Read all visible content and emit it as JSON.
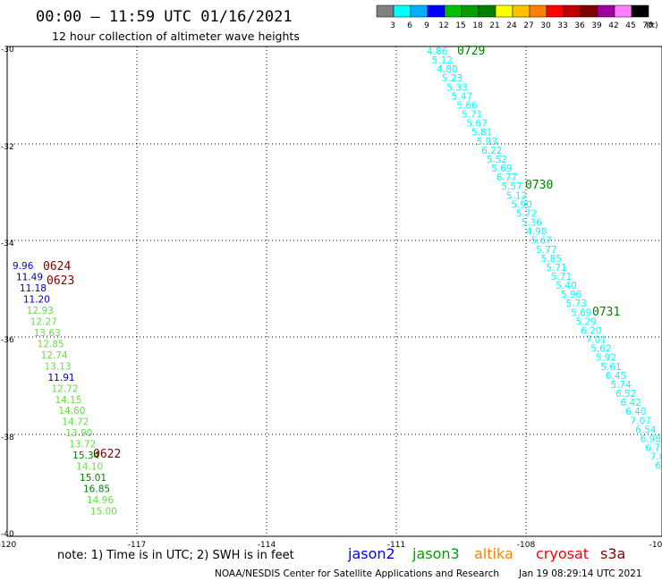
{
  "header": {
    "title": "00:00 – 11:59 UTC 01/16/2021",
    "subtitle": "12 hour collection of altimeter wave heights"
  },
  "colorbar": {
    "colors": [
      "#808080",
      "#00ffff",
      "#00b0ff",
      "#0000ff",
      "#00c000",
      "#00a000",
      "#008000",
      "#ffff00",
      "#ffc000",
      "#ff8000",
      "#ff0000",
      "#c00000",
      "#800000",
      "#a000a0",
      "#ff80ff",
      "#000000"
    ],
    "labels": [
      "3",
      "6",
      "9",
      "12",
      "15",
      "18",
      "21",
      "24",
      "27",
      "30",
      "33",
      "36",
      "39",
      "42",
      "45",
      "70"
    ],
    "unit": "(ft)"
  },
  "axes": {
    "x_labels": [
      "-120",
      "-117",
      "-114",
      "-111",
      "-108",
      "-10"
    ],
    "y_labels": [
      "-30",
      "-32",
      "-34",
      "-36",
      "-38",
      "-40"
    ]
  },
  "tracks": [
    {
      "id": "jason3-0729-0731",
      "labels": [
        {
          "text": "0729",
          "color": "#008000"
        },
        {
          "text": "0730",
          "color": "#008000"
        },
        {
          "text": "0731",
          "color": "#008000"
        }
      ],
      "points": [
        {
          "v": "4.86",
          "c": "#00ffff"
        },
        {
          "v": "5.12",
          "c": "#00ffff"
        },
        {
          "v": "4.80",
          "c": "#00ffff"
        },
        {
          "v": "5.23",
          "c": "#00ffff"
        },
        {
          "v": "5.33",
          "c": "#00ffff"
        },
        {
          "v": "5.47",
          "c": "#00ffff"
        },
        {
          "v": "5.66",
          "c": "#00ffff"
        },
        {
          "v": "5.71",
          "c": "#00ffff"
        },
        {
          "v": "5.67",
          "c": "#00ffff"
        },
        {
          "v": "5.81",
          "c": "#00ffff"
        },
        {
          "v": "5.93",
          "c": "#00ffff"
        },
        {
          "v": "6.22",
          "c": "#00ffff"
        },
        {
          "v": "5.52",
          "c": "#00ffff"
        },
        {
          "v": "5.69",
          "c": "#00ffff"
        },
        {
          "v": "6.77",
          "c": "#00ffff"
        },
        {
          "v": "5.57",
          "c": "#00ffff"
        },
        {
          "v": "5.12",
          "c": "#00ffff"
        },
        {
          "v": "5.90",
          "c": "#00ffff"
        },
        {
          "v": "5.72",
          "c": "#00ffff"
        },
        {
          "v": "5.36",
          "c": "#00ffff"
        },
        {
          "v": "4.98",
          "c": "#00ffff"
        },
        {
          "v": "5.67",
          "c": "#00ffff"
        },
        {
          "v": "5.77",
          "c": "#00ffff"
        },
        {
          "v": "5.85",
          "c": "#00ffff"
        },
        {
          "v": "5.71",
          "c": "#00ffff"
        },
        {
          "v": "5.71",
          "c": "#00ffff"
        },
        {
          "v": "5.40",
          "c": "#00ffff"
        },
        {
          "v": "5.96",
          "c": "#00ffff"
        },
        {
          "v": "5.73",
          "c": "#00ffff"
        },
        {
          "v": "5.69",
          "c": "#00ffff"
        },
        {
          "v": "5.29",
          "c": "#00ffff"
        },
        {
          "v": "6.20",
          "c": "#00ffff"
        },
        {
          "v": "7.01",
          "c": "#00ffff"
        },
        {
          "v": "5.62",
          "c": "#00ffff"
        },
        {
          "v": "5.92",
          "c": "#00ffff"
        },
        {
          "v": "5.61",
          "c": "#00ffff"
        },
        {
          "v": "6.45",
          "c": "#00ffff"
        },
        {
          "v": "5.74",
          "c": "#00ffff"
        },
        {
          "v": "6.52",
          "c": "#00ffff"
        },
        {
          "v": "6.42",
          "c": "#00ffff"
        },
        {
          "v": "6.40",
          "c": "#00ffff"
        },
        {
          "v": "7.07",
          "c": "#00ffff"
        },
        {
          "v": "6.54",
          "c": "#00ffff"
        },
        {
          "v": "6.98",
          "c": "#00ffff"
        },
        {
          "v": "6.71",
          "c": "#00ffff"
        },
        {
          "v": "7.05",
          "c": "#00ffff"
        },
        {
          "v": "6.",
          "c": "#00ffff"
        },
        {
          "v": "7",
          "c": "#00ffff"
        }
      ]
    },
    {
      "id": "cryosat-0622-0624",
      "labels": [
        {
          "text": "0624",
          "color": "#800000"
        },
        {
          "text": "0623",
          "color": "#800000"
        },
        {
          "text": "0622",
          "color": "#800000"
        }
      ],
      "points": [
        {
          "v": "9.96",
          "c": "#0000ff"
        },
        {
          "v": "11.49",
          "c": "#000080"
        },
        {
          "v": "11.18",
          "c": "#0000c0"
        },
        {
          "v": "11.20",
          "c": "#0000c0"
        },
        {
          "v": "12.93",
          "c": "#66dd44"
        },
        {
          "v": "12.27",
          "c": "#66dd44"
        },
        {
          "v": "13.63",
          "c": "#66dd44"
        },
        {
          "v": "12.85",
          "c": "#66dd44"
        },
        {
          "v": "12.74",
          "c": "#66dd44"
        },
        {
          "v": "13.13",
          "c": "#66dd44"
        },
        {
          "v": "11.91",
          "c": "#0000c0"
        },
        {
          "v": "12.72",
          "c": "#66dd44"
        },
        {
          "v": "14.15",
          "c": "#66dd44"
        },
        {
          "v": "14.60",
          "c": "#66dd44"
        },
        {
          "v": "14.72",
          "c": "#66dd44"
        },
        {
          "v": "13.90",
          "c": "#66dd44"
        },
        {
          "v": "13.72",
          "c": "#66dd44"
        },
        {
          "v": "15.34",
          "c": "#008000"
        },
        {
          "v": "14.10",
          "c": "#66dd44"
        },
        {
          "v": "15.01",
          "c": "#008000"
        },
        {
          "v": "16.85",
          "c": "#008000"
        },
        {
          "v": "14.96",
          "c": "#66dd44"
        },
        {
          "v": "15.00",
          "c": "#66dd44"
        }
      ]
    }
  ],
  "footer": {
    "note": "note:  1) Time is in UTC;  2) SWH is in feet",
    "satellites": [
      {
        "name": "jason2",
        "color": "#0000ff"
      },
      {
        "name": "jason3",
        "color": "#00a000"
      },
      {
        "name": "altika",
        "color": "#ff8000"
      },
      {
        "name": "cryosat",
        "color": "#ff0000"
      },
      {
        "name": "s3a",
        "color": "#800000"
      }
    ],
    "credit_left": "NOAA/NESDIS Center for Satellite Applications and Research",
    "credit_right": "Jan 19 08:29:14 UTC 2021"
  }
}
